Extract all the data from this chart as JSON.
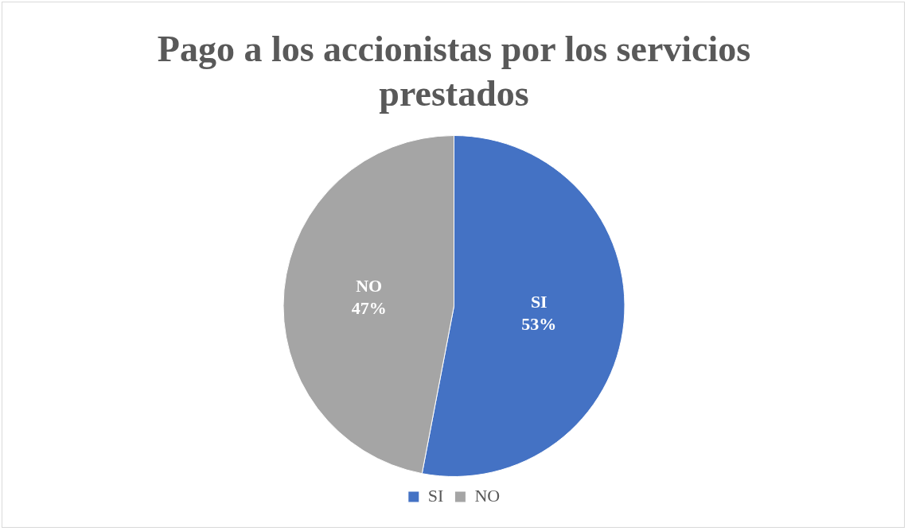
{
  "chart_data": {
    "type": "pie",
    "title": "Pago a los accionistas por los servicios prestados",
    "categories": [
      "SI",
      "NO"
    ],
    "values": [
      53,
      47
    ],
    "colors": [
      "#4472c4",
      "#a5a5a5"
    ],
    "value_labels": [
      "53%",
      "47%"
    ],
    "legend": "bottom"
  }
}
